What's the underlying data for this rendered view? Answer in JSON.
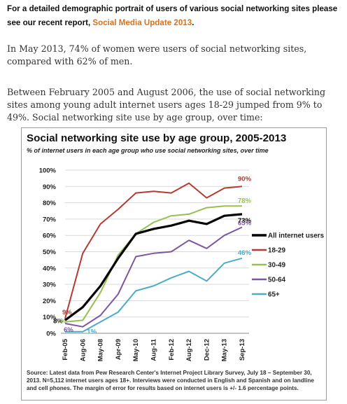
{
  "intro": {
    "lead": "For a detailed demographic portrait of users of various social networking sites  please see our recent report, ",
    "link": "Social Media Update 2013",
    "tail": "."
  },
  "paragraphs": [
    "In May 2013, 74% of women were users of social networking sites, compared with 62% of men.",
    "Between February 2005 and August 2006, the use of social networking sites among young adult internet users ages 18-29 jumped from 9% to 49%. Social networking site use by age group, over time:"
  ],
  "chart_data": {
    "type": "line",
    "title": "Social networking site use by age group, 2005-2013",
    "subtitle": "% of internet users in each age group who use social networking sites, over time",
    "x": [
      "Feb-05",
      "Aug-06",
      "May-08",
      "Apr-09",
      "May-10",
      "Aug-11",
      "Feb-12",
      "Aug-12",
      "Dec-12",
      "May-13",
      "Sep-13"
    ],
    "y_ticks": [
      "0%",
      "10%",
      "20%",
      "30%",
      "40%",
      "50%",
      "60%",
      "70%",
      "80%",
      "90%",
      "100%"
    ],
    "ylim": [
      0,
      100
    ],
    "grid": true,
    "legend_position": "right",
    "series": [
      {
        "name": "All internet users",
        "color": "#000000",
        "values": [
          8,
          16,
          29,
          46,
          61,
          64,
          66,
          69,
          67,
          72,
          73
        ]
      },
      {
        "name": "18-29",
        "color": "#b23b33",
        "values": [
          9,
          49,
          67,
          76,
          86,
          87,
          86,
          92,
          83,
          89,
          90
        ]
      },
      {
        "name": "30-49",
        "color": "#98bf50",
        "values": [
          7,
          8,
          25,
          48,
          61,
          68,
          72,
          73,
          77,
          78,
          78
        ]
      },
      {
        "name": "50-64",
        "color": "#7b57a0",
        "values": [
          6,
          4,
          11,
          24,
          47,
          49,
          50,
          57,
          52,
          60,
          65
        ]
      },
      {
        "name": "65+",
        "color": "#4aacc6",
        "values": [
          1,
          1,
          7,
          13,
          26,
          29,
          34,
          38,
          32,
          43,
          46
        ]
      }
    ],
    "start_labels": [
      "8%",
      "9%",
      "7%",
      "6%",
      "1%"
    ],
    "end_labels": [
      "73%",
      "90%",
      "78%",
      "65%",
      "46%"
    ],
    "source": "Source: Latest data from Pew Research Center's Internet Project Library Survey, July 18 – September 30, 2013. N=5,112 internet users ages 18+. Interviews were conducted in English and Spanish and on landline and cell phones.  The margin of error for results based on internet users is +/- 1.6 percentage points."
  }
}
